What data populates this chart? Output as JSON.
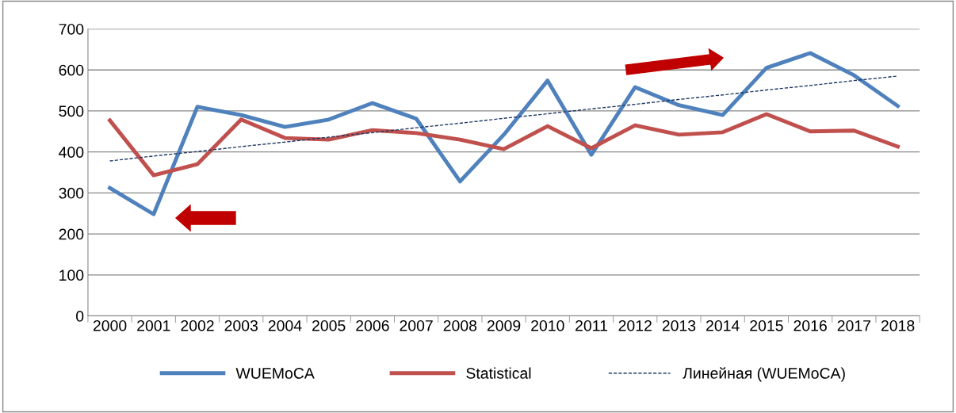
{
  "chart_data": {
    "type": "line",
    "categories": [
      "2000",
      "2001",
      "2002",
      "2003",
      "2004",
      "2005",
      "2006",
      "2007",
      "2008",
      "2009",
      "2010",
      "2011",
      "2012",
      "2013",
      "2014",
      "2015",
      "2016",
      "2017",
      "2018"
    ],
    "series": [
      {
        "name": "WUEMoCA",
        "color": "#4f81bd",
        "values": [
          312,
          248,
          510,
          490,
          461,
          479,
          519,
          481,
          328,
          442,
          574,
          393,
          558,
          514,
          490,
          605,
          641,
          587,
          512
        ]
      },
      {
        "name": "Statistical",
        "color": "#c0504d",
        "values": [
          477,
          343,
          370,
          479,
          434,
          430,
          453,
          446,
          430,
          407,
          463,
          409,
          465,
          442,
          448,
          492,
          450,
          452,
          413
        ]
      },
      {
        "name": "Линейная (WUEMoCA)",
        "color": "#1f3864",
        "type": "line",
        "line_style": "dashed",
        "values": [
          378,
          390,
          401,
          413,
          424,
          436,
          447,
          459,
          470,
          482,
          493,
          505,
          516,
          528,
          539,
          551,
          562,
          574,
          585
        ]
      }
    ],
    "ylim": [
      0,
      700
    ],
    "yticks": [
      0,
      100,
      200,
      300,
      400,
      500,
      600,
      700
    ],
    "grid": "y",
    "legend": "bottom",
    "marker": "none",
    "line_style": "solid"
  }
}
